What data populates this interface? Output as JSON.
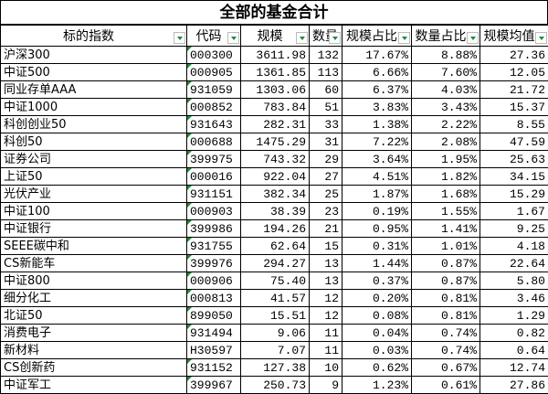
{
  "title": "全部的基金合计",
  "headers": [
    "标的指数",
    "代码",
    "规模",
    "数量",
    "规模占比",
    "数量占比",
    "规模均值"
  ],
  "header_display": [
    "标的指数",
    "代码",
    "规模",
    "数ℶ",
    "规模占比",
    "数量占比",
    "规模均值"
  ],
  "accent_color": "#1e8c3a",
  "rows": [
    [
      "沪深300",
      "000300",
      "3611.98",
      "132",
      "17.67%",
      "8.88%",
      "27.36"
    ],
    [
      "中证500",
      "000905",
      "1361.85",
      "113",
      "6.66%",
      "7.60%",
      "12.05"
    ],
    [
      "同业存单AAA",
      "931059",
      "1303.06",
      "60",
      "6.37%",
      "4.03%",
      "21.72"
    ],
    [
      "中证1000",
      "000852",
      "783.84",
      "51",
      "3.83%",
      "3.43%",
      "15.37"
    ],
    [
      "科创创业50",
      "931643",
      "282.31",
      "33",
      "1.38%",
      "2.22%",
      "8.55"
    ],
    [
      "科创50",
      "000688",
      "1475.29",
      "31",
      "7.22%",
      "2.08%",
      "47.59"
    ],
    [
      "证券公司",
      "399975",
      "743.32",
      "29",
      "3.64%",
      "1.95%",
      "25.63"
    ],
    [
      "上证50",
      "000016",
      "922.04",
      "27",
      "4.51%",
      "1.82%",
      "34.15"
    ],
    [
      "光伏产业",
      "931151",
      "382.34",
      "25",
      "1.87%",
      "1.68%",
      "15.29"
    ],
    [
      "中证100",
      "000903",
      "38.39",
      "23",
      "0.19%",
      "1.55%",
      "1.67"
    ],
    [
      "中证银行",
      "399986",
      "194.26",
      "21",
      "0.95%",
      "1.41%",
      "9.25"
    ],
    [
      "SEEE碳中和",
      "931755",
      "62.64",
      "15",
      "0.31%",
      "1.01%",
      "4.18"
    ],
    [
      "CS新能车",
      "399976",
      "294.27",
      "13",
      "1.44%",
      "0.87%",
      "22.64"
    ],
    [
      "中证800",
      "000906",
      "75.40",
      "13",
      "0.37%",
      "0.87%",
      "5.80"
    ],
    [
      "细分化工",
      "000813",
      "41.57",
      "12",
      "0.20%",
      "0.81%",
      "3.46"
    ],
    [
      "北证50",
      "899050",
      "15.51",
      "12",
      "0.08%",
      "0.81%",
      "1.29"
    ],
    [
      "消费电子",
      "931494",
      "9.06",
      "11",
      "0.04%",
      "0.74%",
      "0.82"
    ],
    [
      "新材料",
      "H30597",
      "7.07",
      "11",
      "0.03%",
      "0.74%",
      "0.64"
    ],
    [
      "CS创新药",
      "931152",
      "127.38",
      "10",
      "0.62%",
      "0.67%",
      "12.74"
    ],
    [
      "中证军工",
      "399967",
      "250.73",
      "9",
      "1.23%",
      "0.61%",
      "27.86"
    ]
  ]
}
